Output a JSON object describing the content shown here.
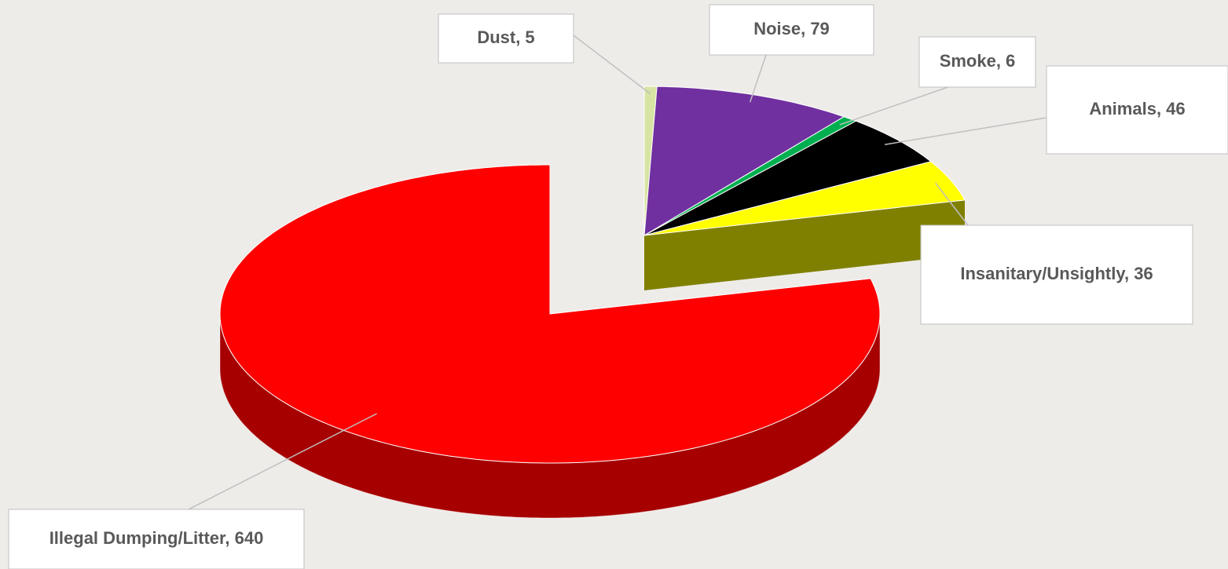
{
  "chart_data": {
    "type": "pie3d",
    "categories": [
      "Dust",
      "Noise",
      "Smoke",
      "Animals",
      "Insanitary/Unsightly",
      "Illegal Dumping/Litter"
    ],
    "values": [
      5,
      79,
      6,
      46,
      36,
      640
    ],
    "value_labels": [
      "Dust, 5",
      "Noise, 79",
      "Smoke, 6",
      "Animals, 46",
      "Insanitary/Unsightly, 36",
      "Illegal Dumping/Litter, 640"
    ],
    "colors": [
      "#d7e4a3",
      "#7030a0",
      "#00b050",
      "#000000",
      "#ffff00",
      "#ff0000"
    ]
  }
}
